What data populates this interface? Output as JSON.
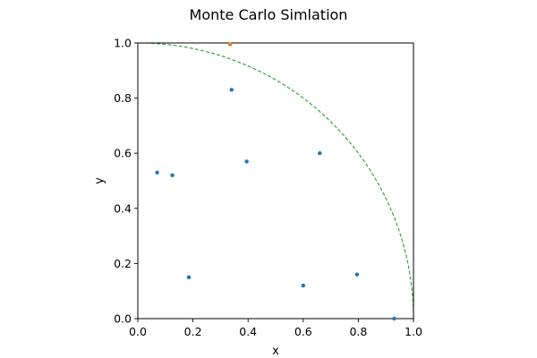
{
  "chart_data": {
    "type": "scatter",
    "title": "Monte Carlo Simlation",
    "xlabel": "x",
    "ylabel": "y",
    "xlim": [
      0.0,
      1.0
    ],
    "ylim": [
      0.0,
      1.0
    ],
    "xticks": [
      "0.0",
      "0.2",
      "0.4",
      "0.6",
      "0.8",
      "1.0"
    ],
    "yticks": [
      "0.0",
      "0.2",
      "0.4",
      "0.6",
      "0.8",
      "1.0"
    ],
    "grid": false,
    "legend": "none",
    "series": [
      {
        "color": "#1f77b4",
        "points": [
          {
            "x": 0.34,
            "y": 0.83
          },
          {
            "x": 0.07,
            "y": 0.53
          },
          {
            "x": 0.125,
            "y": 0.52
          },
          {
            "x": 0.395,
            "y": 0.57
          },
          {
            "x": 0.66,
            "y": 0.6
          },
          {
            "x": 0.185,
            "y": 0.15
          },
          {
            "x": 0.6,
            "y": 0.12
          },
          {
            "x": 0.795,
            "y": 0.16
          },
          {
            "x": 0.93,
            "y": 0.0
          }
        ]
      },
      {
        "color": "#ff7f0e",
        "points": [
          {
            "x": 0.335,
            "y": 0.995
          }
        ]
      }
    ],
    "reference_curve": {
      "shape": "quarter-circle",
      "radius": 1.0,
      "style": "dashed",
      "color": "#2ca02c"
    }
  }
}
